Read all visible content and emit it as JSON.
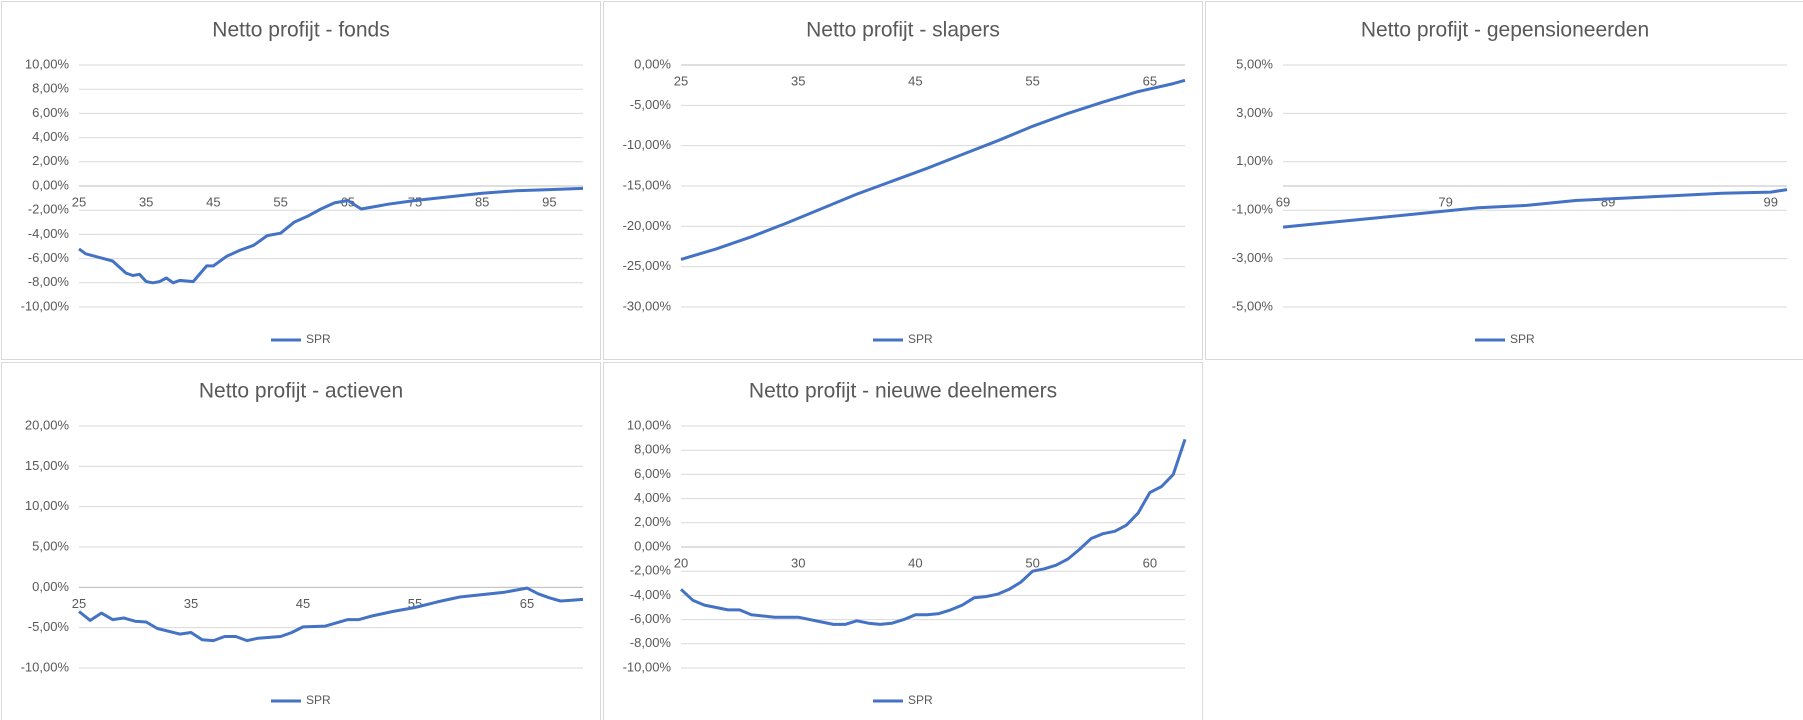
{
  "chart_data": [
    {
      "type": "line",
      "title": "Netto profijt - fonds",
      "x": [
        25,
        26,
        28,
        30,
        32,
        33,
        34,
        35,
        36,
        37,
        38,
        39,
        40,
        42,
        44,
        45,
        47,
        49,
        51,
        53,
        55,
        57,
        59,
        61,
        63,
        65,
        67,
        69,
        71,
        75,
        80,
        85,
        90,
        95,
        100
      ],
      "series": [
        {
          "name": "SPR",
          "color": "#4472c4",
          "values": [
            -5.2,
            -5.6,
            -5.9,
            -6.2,
            -7.2,
            -7.4,
            -7.3,
            -7.9,
            -8.0,
            -7.9,
            -7.6,
            -8.0,
            -7.8,
            -7.9,
            -6.6,
            -6.6,
            -5.8,
            -5.3,
            -4.9,
            -4.1,
            -3.9,
            -3.0,
            -2.5,
            -1.9,
            -1.4,
            -1.2,
            -1.9,
            -1.7,
            -1.5,
            -1.2,
            -0.9,
            -0.6,
            -0.4,
            -0.3,
            -0.2
          ]
        }
      ],
      "xlim": [
        25,
        100
      ],
      "xticks": [
        25,
        35,
        45,
        55,
        65,
        75,
        85,
        95
      ],
      "ylim": [
        -10,
        10
      ],
      "yticks": [
        {
          "value": 10,
          "label": "10,00%"
        },
        {
          "value": 8,
          "label": "8,00%"
        },
        {
          "value": 6,
          "label": "6,00%"
        },
        {
          "value": 4,
          "label": "4,00%"
        },
        {
          "value": 2,
          "label": "2,00%"
        },
        {
          "value": 0,
          "label": "0,00%"
        },
        {
          "value": -2,
          "label": "-2,00%"
        },
        {
          "value": -4,
          "label": "-4,00%"
        },
        {
          "value": -6,
          "label": "-6,00%"
        },
        {
          "value": -8,
          "label": "-8,00%"
        },
        {
          "value": -10,
          "label": "-10,00%"
        }
      ],
      "grid": true,
      "legend": "bottom"
    },
    {
      "type": "line",
      "title": "Netto profijt - slapers",
      "x": [
        25,
        28,
        31,
        34,
        37,
        40,
        43,
        46,
        49,
        52,
        55,
        58,
        61,
        64,
        67,
        68
      ],
      "series": [
        {
          "name": "SPR",
          "color": "#4472c4",
          "values": [
            -24.1,
            -22.8,
            -21.3,
            -19.6,
            -17.8,
            -16.0,
            -14.4,
            -12.8,
            -11.1,
            -9.4,
            -7.6,
            -6.0,
            -4.6,
            -3.3,
            -2.3,
            -1.9
          ]
        }
      ],
      "xlim": [
        25,
        68
      ],
      "xticks": [
        25,
        35,
        45,
        55,
        65
      ],
      "ylim": [
        -30,
        0
      ],
      "yticks": [
        {
          "value": 0,
          "label": "0,00%"
        },
        {
          "value": -5,
          "label": "-5,00%"
        },
        {
          "value": -10,
          "label": "-10,00%"
        },
        {
          "value": -15,
          "label": "-15,00%"
        },
        {
          "value": -20,
          "label": "-20,00%"
        },
        {
          "value": -25,
          "label": "-25,00%"
        },
        {
          "value": -30,
          "label": "-30,00%"
        }
      ],
      "grid": true,
      "legend": "bottom"
    },
    {
      "type": "line",
      "title": "Netto profijt - gepensioneerden",
      "x": [
        69,
        72,
        75,
        78,
        81,
        84,
        87,
        90,
        93,
        96,
        99,
        100
      ],
      "series": [
        {
          "name": "SPR",
          "color": "#4472c4",
          "values": [
            -1.7,
            -1.5,
            -1.3,
            -1.1,
            -0.9,
            -0.8,
            -0.6,
            -0.5,
            -0.4,
            -0.3,
            -0.25,
            -0.15
          ]
        }
      ],
      "xlim": [
        69,
        100
      ],
      "xticks": [
        69,
        79,
        89,
        99
      ],
      "ylim": [
        -5,
        5
      ],
      "yticks": [
        {
          "value": 5,
          "label": "5,00%"
        },
        {
          "value": 3,
          "label": "3,00%"
        },
        {
          "value": 1,
          "label": "1,00%"
        },
        {
          "value": -1,
          "label": "-1,00%"
        },
        {
          "value": -3,
          "label": "-3,00%"
        },
        {
          "value": -5,
          "label": "-5,00%"
        }
      ],
      "grid": true,
      "legend": "bottom"
    },
    {
      "type": "line",
      "title": "Netto profijt - actieven",
      "x": [
        25,
        26,
        27,
        28,
        29,
        30,
        31,
        32,
        34,
        35,
        36,
        37,
        38,
        39,
        40,
        41,
        43,
        44,
        45,
        47,
        49,
        50,
        51,
        53,
        55,
        57,
        59,
        61,
        63,
        65,
        66,
        67,
        68,
        69,
        70
      ],
      "series": [
        {
          "name": "SPR",
          "color": "#4472c4",
          "values": [
            -3.0,
            -4.1,
            -3.2,
            -4.0,
            -3.8,
            -4.2,
            -4.3,
            -5.1,
            -5.8,
            -5.6,
            -6.5,
            -6.6,
            -6.1,
            -6.1,
            -6.6,
            -6.3,
            -6.1,
            -5.6,
            -4.9,
            -4.8,
            -4.0,
            -4.0,
            -3.6,
            -3.0,
            -2.5,
            -1.8,
            -1.2,
            -0.9,
            -0.6,
            -0.1,
            -0.8,
            -1.3,
            -1.7,
            -1.6,
            -1.5
          ]
        }
      ],
      "xlim": [
        25,
        70
      ],
      "xticks": [
        25,
        35,
        45,
        55,
        65
      ],
      "ylim": [
        -10,
        20
      ],
      "yticks": [
        {
          "value": 20,
          "label": "20,00%"
        },
        {
          "value": 15,
          "label": "15,00%"
        },
        {
          "value": 10,
          "label": "10,00%"
        },
        {
          "value": 5,
          "label": "5,00%"
        },
        {
          "value": 0,
          "label": "0,00%"
        },
        {
          "value": -5,
          "label": "-5,00%"
        },
        {
          "value": -10,
          "label": "-10,00%"
        }
      ],
      "grid": true,
      "legend": "bottom"
    },
    {
      "type": "line",
      "title": "Netto profijt - nieuwe deelnemers",
      "x": [
        20,
        21,
        22,
        23,
        24,
        25,
        26,
        28,
        30,
        32,
        33,
        34,
        35,
        36,
        37,
        38,
        39,
        40,
        41,
        42,
        43,
        44,
        45,
        46,
        47,
        48,
        49,
        50,
        51,
        52,
        53,
        54,
        55,
        56,
        57,
        58,
        59,
        60,
        61,
        62,
        63
      ],
      "series": [
        {
          "name": "SPR",
          "color": "#4472c4",
          "values": [
            -3.5,
            -4.4,
            -4.8,
            -5.0,
            -5.2,
            -5.2,
            -5.6,
            -5.8,
            -5.8,
            -6.2,
            -6.4,
            -6.4,
            -6.1,
            -6.3,
            -6.4,
            -6.3,
            -6.0,
            -5.6,
            -5.6,
            -5.5,
            -5.2,
            -4.8,
            -4.2,
            -4.1,
            -3.9,
            -3.5,
            -2.9,
            -2.0,
            -1.8,
            -1.5,
            -1.0,
            -0.2,
            0.7,
            1.1,
            1.3,
            1.8,
            2.8,
            4.5,
            5.0,
            6.0,
            8.9
          ]
        }
      ],
      "xlim": [
        20,
        63
      ],
      "xticks": [
        20,
        30,
        40,
        50,
        60
      ],
      "ylim": [
        -10,
        10
      ],
      "yticks": [
        {
          "value": 10,
          "label": "10,00%"
        },
        {
          "value": 8,
          "label": "8,00%"
        },
        {
          "value": 6,
          "label": "6,00%"
        },
        {
          "value": 4,
          "label": "4,00%"
        },
        {
          "value": 2,
          "label": "2,00%"
        },
        {
          "value": 0,
          "label": "0,00%"
        },
        {
          "value": -2,
          "label": "-2,00%"
        },
        {
          "value": -4,
          "label": "-4,00%"
        },
        {
          "value": -6,
          "label": "-6,00%"
        },
        {
          "value": -8,
          "label": "-8,00%"
        },
        {
          "value": -10,
          "label": "-10,00%"
        }
      ],
      "grid": true,
      "legend": "bottom"
    }
  ]
}
